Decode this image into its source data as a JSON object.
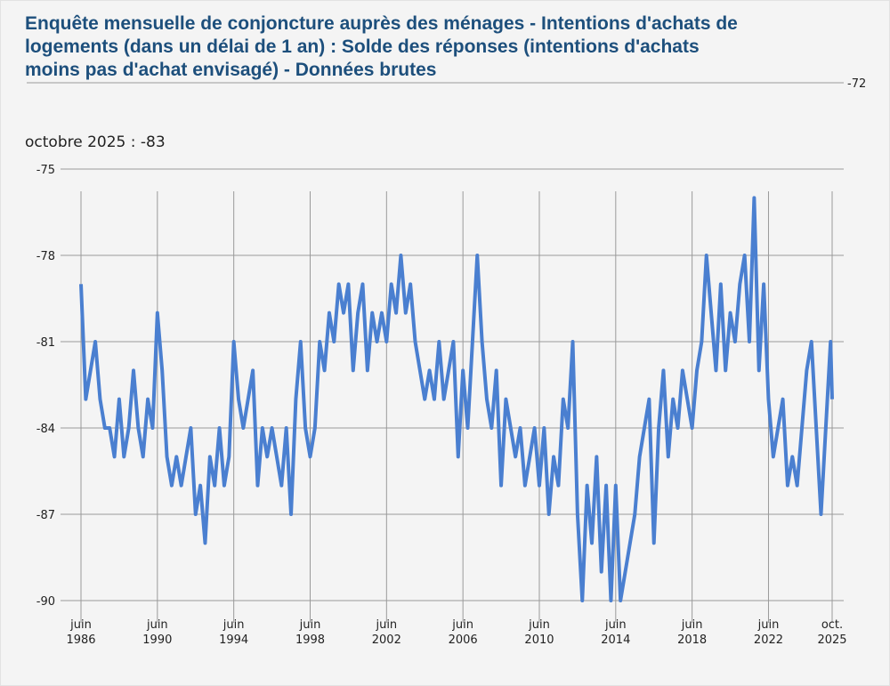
{
  "title": "Enquête mensuelle de conjoncture auprès des ménages - Intentions d'achats de logements (dans un délai de 1 an) : Solde des réponses (intentions d'achats moins pas d'achat envisagé) - Données brutes",
  "subtitle": "octobre 2025 : -83",
  "chart_data": {
    "type": "line",
    "title": "Enquête mensuelle de conjoncture auprès des ménages - Intentions d'achats de logements (dans un délai de 1 an) : Solde des réponses (intentions d'achats moins pas d'achat envisagé) - Données brutes",
    "xlabel": "",
    "ylabel": "",
    "ylim": [
      -90,
      -72
    ],
    "yticks": [
      -90,
      -87,
      -84,
      -81,
      -78,
      -75,
      -72
    ],
    "xlim": [
      "1986-06",
      "2025-10"
    ],
    "xticks": [
      {
        "x": "1986-06",
        "line1": "juin",
        "line2": "1986"
      },
      {
        "x": "1990-06",
        "line1": "juin",
        "line2": "1990"
      },
      {
        "x": "1994-06",
        "line1": "juin",
        "line2": "1994"
      },
      {
        "x": "1998-06",
        "line1": "juin",
        "line2": "1998"
      },
      {
        "x": "2002-06",
        "line1": "juin",
        "line2": "2002"
      },
      {
        "x": "2006-06",
        "line1": "juin",
        "line2": "2006"
      },
      {
        "x": "2010-06",
        "line1": "juin",
        "line2": "2010"
      },
      {
        "x": "2014-06",
        "line1": "juin",
        "line2": "2014"
      },
      {
        "x": "2018-06",
        "line1": "juin",
        "line2": "2018"
      },
      {
        "x": "2022-06",
        "line1": "juin",
        "line2": "2022"
      },
      {
        "x": "2025-10",
        "line1": "oct.",
        "line2": "2025"
      }
    ],
    "grid": true,
    "line_color": "#4a7fd0",
    "series_start": "1986-06",
    "series_period_months": 3,
    "values": [
      -79,
      -83,
      -82,
      -81,
      -83,
      -84,
      -84,
      -85,
      -83,
      -85,
      -84,
      -82,
      -84,
      -85,
      -83,
      -84,
      -80,
      -82,
      -85,
      -86,
      -85,
      -86,
      -85,
      -84,
      -87,
      -86,
      -88,
      -85,
      -86,
      -84,
      -86,
      -85,
      -81,
      -83,
      -84,
      -83,
      -82,
      -86,
      -84,
      -85,
      -84,
      -85,
      -86,
      -84,
      -87,
      -83,
      -81,
      -84,
      -85,
      -84,
      -81,
      -82,
      -80,
      -81,
      -79,
      -80,
      -79,
      -82,
      -80,
      -79,
      -82,
      -80,
      -81,
      -80,
      -81,
      -79,
      -80,
      -78,
      -80,
      -79,
      -81,
      -82,
      -83,
      -82,
      -83,
      -81,
      -83,
      -82,
      -81,
      -85,
      -82,
      -84,
      -81,
      -78,
      -81,
      -83,
      -84,
      -82,
      -86,
      -83,
      -84,
      -85,
      -84,
      -86,
      -85,
      -84,
      -86,
      -84,
      -87,
      -85,
      -86,
      -83,
      -84,
      -81,
      -87,
      -90,
      -86,
      -88,
      -85,
      -89,
      -86,
      -90,
      -86,
      -90,
      -89,
      -88,
      -87,
      -85,
      -84,
      -83,
      -88,
      -84,
      -82,
      -85,
      -83,
      -84,
      -82,
      -83,
      -84,
      -82,
      -81,
      -78,
      -80,
      -82,
      -79,
      -82,
      -80,
      -81,
      -79,
      -78,
      -81,
      -76,
      -82,
      -79,
      -83,
      -85,
      -84,
      -83,
      -86,
      -85,
      -86,
      -84,
      -82,
      -81,
      -84,
      -87,
      -84,
      -81
    ],
    "last_point": {
      "x": "2025-10",
      "y": -83
    }
  }
}
